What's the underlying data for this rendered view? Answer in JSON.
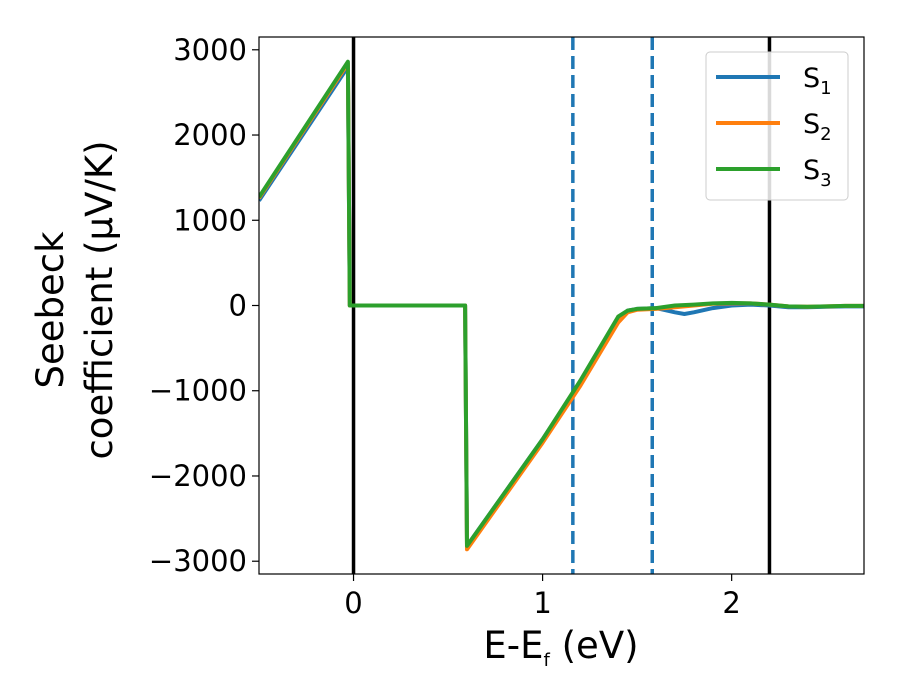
{
  "chart_data": {
    "type": "line",
    "xlabel": {
      "main": "E-E",
      "sub": "f",
      "unit": " (eV)"
    },
    "ylabel": {
      "line1": "Seebeck",
      "line2": "coefficient  (μV/K)"
    },
    "xlim": [
      -0.5,
      2.7
    ],
    "ylim": [
      -3150,
      3150
    ],
    "xticks": [
      0,
      1,
      2
    ],
    "xtick_labels": [
      "0",
      "1",
      "2"
    ],
    "yticks": [
      -3000,
      -2000,
      -1000,
      0,
      1000,
      2000,
      3000
    ],
    "ytick_labels": [
      "−3000",
      "−2000",
      "−1000",
      "0",
      "1000",
      "2000",
      "3000"
    ],
    "grid": false,
    "legend_position": "top-right",
    "vertical_lines": [
      {
        "x": 0.0,
        "style": "solid",
        "color": "#000000"
      },
      {
        "x": 1.16,
        "style": "dashed",
        "color": "#1f77b4"
      },
      {
        "x": 1.58,
        "style": "dashed",
        "color": "#1f77b4"
      },
      {
        "x": 2.2,
        "style": "solid",
        "color": "#000000"
      }
    ],
    "series": [
      {
        "name": "S1",
        "legend_main": "S",
        "legend_sub": "1",
        "color": "#1f77b4",
        "x": [
          -0.5,
          -0.03,
          -0.02,
          0.58,
          0.59,
          0.6,
          1.0,
          1.2,
          1.4,
          1.45,
          1.5,
          1.6,
          1.7,
          1.75,
          1.8,
          1.9,
          2.0,
          2.1,
          2.2,
          2.3,
          2.4,
          2.5,
          2.6,
          2.7
        ],
        "y": [
          1230,
          2800,
          0,
          0,
          0,
          -2820,
          -1570,
          -900,
          -150,
          -60,
          -40,
          -30,
          -80,
          -100,
          -80,
          -30,
          0,
          10,
          0,
          -20,
          -20,
          -15,
          -10,
          -10
        ]
      },
      {
        "name": "S2",
        "legend_main": "S",
        "legend_sub": "2",
        "color": "#ff7f0e",
        "x": [
          -0.5,
          -0.03,
          -0.02,
          0.58,
          0.59,
          0.6,
          1.0,
          1.2,
          1.4,
          1.45,
          1.5,
          1.6,
          1.7,
          1.8,
          1.9,
          2.0,
          2.1,
          2.2,
          2.3,
          2.4,
          2.5,
          2.6,
          2.7
        ],
        "y": [
          1260,
          2840,
          0,
          0,
          0,
          -2860,
          -1610,
          -940,
          -200,
          -80,
          -50,
          -40,
          -20,
          0,
          20,
          25,
          25,
          10,
          -10,
          -15,
          -10,
          -5,
          -5
        ]
      },
      {
        "name": "S3",
        "legend_main": "S",
        "legend_sub": "3",
        "color": "#2ca02c",
        "x": [
          -0.5,
          -0.03,
          -0.02,
          0.58,
          0.59,
          0.6,
          1.0,
          1.2,
          1.4,
          1.45,
          1.5,
          1.6,
          1.7,
          1.8,
          1.9,
          2.0,
          2.1,
          2.2,
          2.3,
          2.4,
          2.5,
          2.6,
          2.7
        ],
        "y": [
          1270,
          2860,
          0,
          0,
          0,
          -2820,
          -1570,
          -880,
          -130,
          -60,
          -40,
          -30,
          0,
          10,
          25,
          30,
          25,
          10,
          -10,
          -15,
          -10,
          -5,
          -5
        ]
      }
    ]
  }
}
